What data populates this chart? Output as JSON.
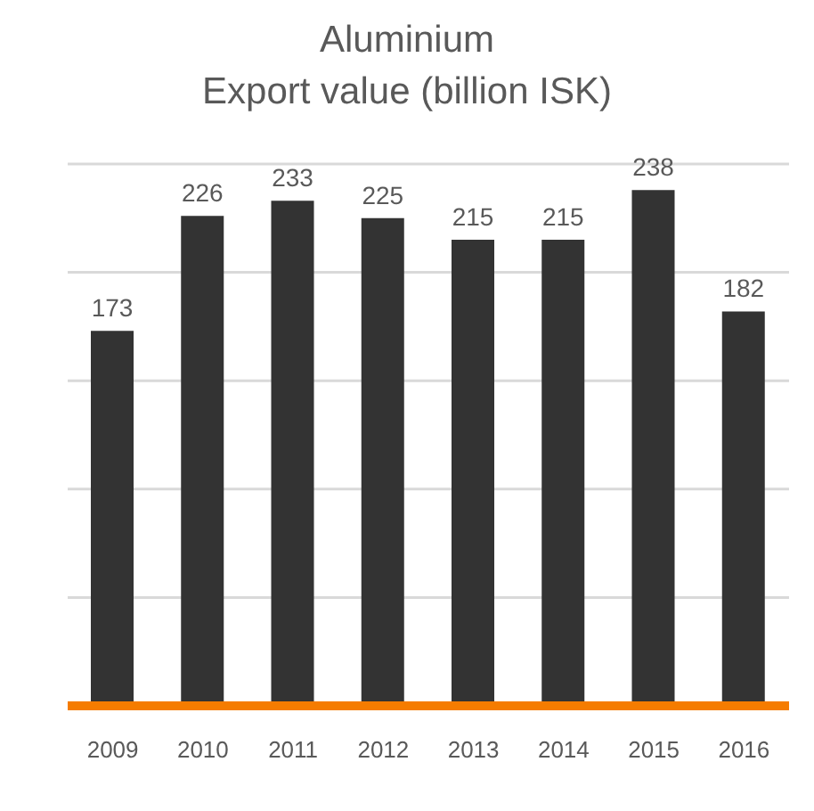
{
  "chart_data": {
    "type": "bar",
    "title": "Aluminium\nExport value (billion ISK)",
    "categories": [
      "2009",
      "2010",
      "2011",
      "2012",
      "2013",
      "2014",
      "2015",
      "2016"
    ],
    "values": [
      173,
      226,
      233,
      225,
      215,
      215,
      238,
      182
    ],
    "color": "#333333",
    "grid": "y",
    "tick_labels": "x",
    "data_labels": true
  }
}
